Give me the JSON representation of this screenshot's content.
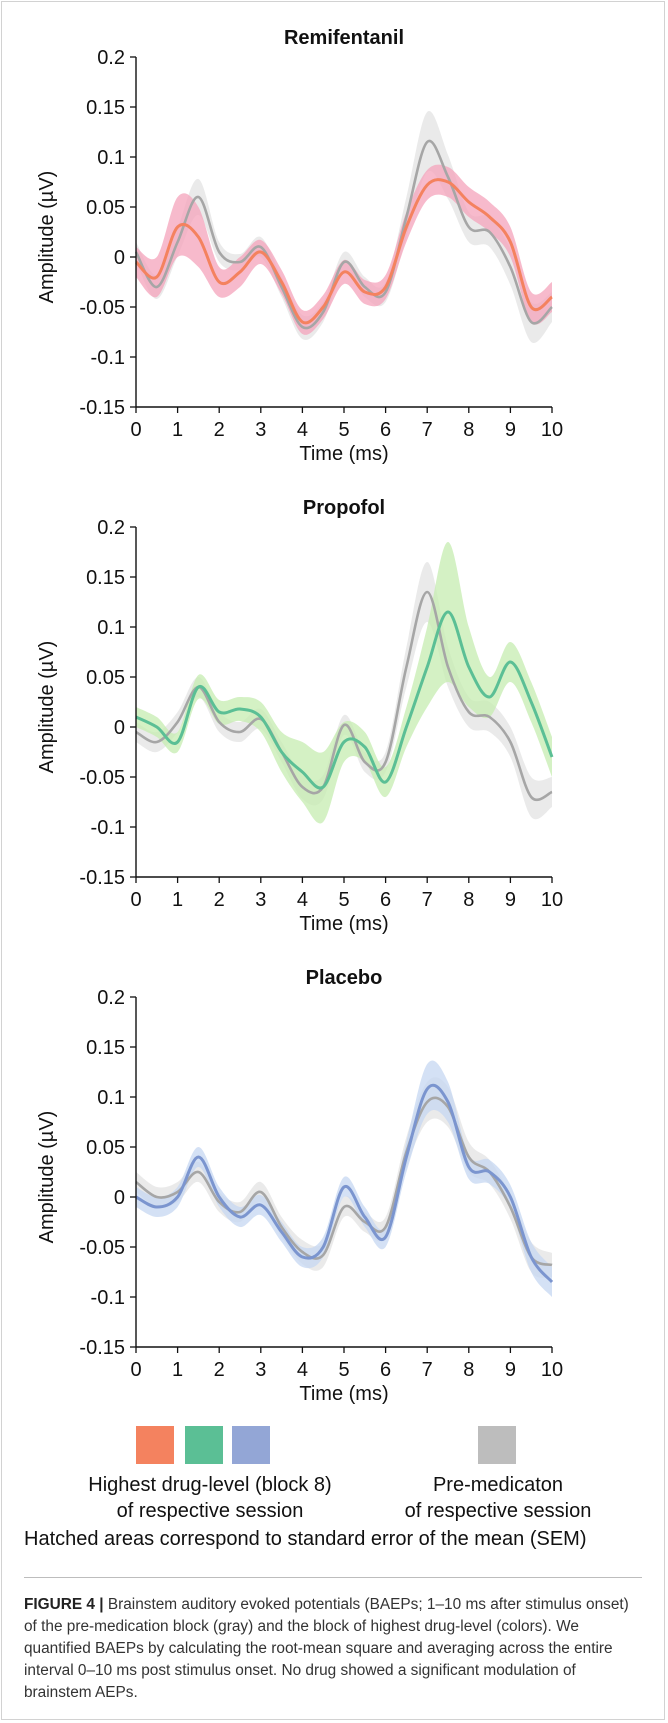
{
  "chart_data": [
    {
      "type": "line",
      "title": "Remifentanil",
      "xlabel": "Time (ms)",
      "ylabel": "Amplitude (µV)",
      "xlim": [
        0,
        10
      ],
      "ylim": [
        -0.15,
        0.2
      ],
      "xticks": [
        "0",
        "1",
        "2",
        "3",
        "4",
        "5",
        "6",
        "7",
        "8",
        "9",
        "10"
      ],
      "yticks": [
        "0.2",
        "0.15",
        "0.1",
        "0.05",
        "0",
        "-0.05",
        "-0.1",
        "-0.15"
      ],
      "drug_color": "#f4825f",
      "drug_band_color": "#f4a3bb",
      "series": [
        {
          "role": "gray",
          "x": [
            0,
            0.5,
            1,
            1.5,
            2,
            2.5,
            3,
            3.5,
            4,
            4.5,
            5,
            5.5,
            6,
            6.5,
            7,
            7.5,
            8,
            8.5,
            9,
            9.5,
            10
          ],
          "y": [
            0.005,
            -0.03,
            0.015,
            0.06,
            0.005,
            -0.005,
            0.01,
            -0.03,
            -0.07,
            -0.055,
            -0.005,
            -0.03,
            -0.035,
            0.04,
            0.115,
            0.08,
            0.03,
            0.025,
            -0.01,
            -0.065,
            -0.05
          ],
          "sem": [
            0.01,
            0.012,
            0.014,
            0.018,
            0.01,
            0.008,
            0.01,
            0.01,
            0.012,
            0.01,
            0.01,
            0.01,
            0.01,
            0.02,
            0.03,
            0.022,
            0.015,
            0.015,
            0.018,
            0.02,
            0.015
          ]
        },
        {
          "role": "drug",
          "x": [
            0,
            0.5,
            1,
            1.5,
            2,
            2.5,
            3,
            3.5,
            4,
            4.5,
            5,
            5.5,
            6,
            6.5,
            7,
            7.5,
            8,
            8.5,
            9,
            9.5,
            10
          ],
          "y": [
            -0.005,
            -0.02,
            0.03,
            0.02,
            -0.025,
            -0.015,
            0.005,
            -0.025,
            -0.065,
            -0.05,
            -0.015,
            -0.035,
            -0.03,
            0.03,
            0.072,
            0.075,
            0.055,
            0.04,
            0.015,
            -0.05,
            -0.04
          ],
          "sem": [
            0.015,
            0.02,
            0.03,
            0.03,
            0.015,
            0.015,
            0.012,
            0.012,
            0.012,
            0.012,
            0.012,
            0.012,
            0.012,
            0.015,
            0.015,
            0.015,
            0.015,
            0.015,
            0.015,
            0.015,
            0.015
          ]
        }
      ]
    },
    {
      "type": "line",
      "title": "Propofol",
      "xlabel": "Time (ms)",
      "ylabel": "Amplitude (µV)",
      "xlim": [
        0,
        10
      ],
      "ylim": [
        -0.15,
        0.2
      ],
      "xticks": [
        "0",
        "1",
        "2",
        "3",
        "4",
        "5",
        "6",
        "7",
        "8",
        "9",
        "10"
      ],
      "yticks": [
        "0.2",
        "0.15",
        "0.1",
        "0.05",
        "0",
        "-0.05",
        "-0.1",
        "-0.15"
      ],
      "drug_color": "#5bbf95",
      "drug_band_color": "#c6ecb0",
      "series": [
        {
          "role": "gray",
          "x": [
            0,
            0.5,
            1,
            1.5,
            2,
            2.5,
            3,
            3.5,
            4,
            4.5,
            5,
            5.5,
            6,
            6.5,
            7,
            7.5,
            8,
            8.5,
            9,
            9.5,
            10
          ],
          "y": [
            -0.005,
            -0.015,
            0.005,
            0.04,
            0.005,
            -0.005,
            0.008,
            -0.025,
            -0.06,
            -0.06,
            0.002,
            -0.035,
            -0.035,
            0.06,
            0.135,
            0.06,
            0.015,
            0.01,
            -0.015,
            -0.07,
            -0.065
          ],
          "sem": [
            0.01,
            0.01,
            0.01,
            0.01,
            0.01,
            0.01,
            0.01,
            0.01,
            0.012,
            0.012,
            0.01,
            0.01,
            0.01,
            0.02,
            0.03,
            0.02,
            0.015,
            0.015,
            0.015,
            0.02,
            0.015
          ]
        },
        {
          "role": "drug",
          "x": [
            0,
            0.5,
            1,
            1.5,
            2,
            2.5,
            3,
            3.5,
            4,
            4.5,
            5,
            5.5,
            6,
            6.5,
            7,
            7.5,
            8,
            8.5,
            9,
            9.5,
            10
          ],
          "y": [
            0.01,
            0.0,
            -0.015,
            0.04,
            0.015,
            0.018,
            0.01,
            -0.025,
            -0.045,
            -0.06,
            -0.015,
            -0.02,
            -0.055,
            0.0,
            0.06,
            0.115,
            0.06,
            0.03,
            0.065,
            0.025,
            -0.03
          ],
          "sem": [
            0.01,
            0.01,
            0.01,
            0.012,
            0.012,
            0.012,
            0.015,
            0.02,
            0.03,
            0.035,
            0.02,
            0.015,
            0.015,
            0.02,
            0.04,
            0.07,
            0.04,
            0.02,
            0.02,
            0.02,
            0.02
          ]
        }
      ]
    },
    {
      "type": "line",
      "title": "Placebo",
      "xlabel": "Time (ms)",
      "ylabel": "Amplitude (µV)",
      "xlim": [
        0,
        10
      ],
      "ylim": [
        -0.15,
        0.2
      ],
      "xticks": [
        "0",
        "1",
        "2",
        "3",
        "4",
        "5",
        "6",
        "7",
        "8",
        "9",
        "10"
      ],
      "yticks": [
        "0.2",
        "0.15",
        "0.1",
        "0.05",
        "0",
        "-0.05",
        "-0.1",
        "-0.15"
      ],
      "drug_color": "#7b95cf",
      "drug_band_color": "#c5d7f2",
      "series": [
        {
          "role": "gray",
          "x": [
            0,
            0.5,
            1,
            1.5,
            2,
            2.5,
            3,
            3.5,
            4,
            4.5,
            5,
            5.5,
            6,
            6.5,
            7,
            7.5,
            8,
            8.5,
            9,
            9.5,
            10
          ],
          "y": [
            0.015,
            0.0,
            0.005,
            0.025,
            -0.005,
            -0.015,
            0.005,
            -0.03,
            -0.055,
            -0.058,
            -0.01,
            -0.025,
            -0.03,
            0.045,
            0.095,
            0.09,
            0.04,
            0.025,
            -0.01,
            -0.06,
            -0.068
          ],
          "sem": [
            0.01,
            0.01,
            0.01,
            0.01,
            0.01,
            0.01,
            0.01,
            0.01,
            0.012,
            0.012,
            0.01,
            0.01,
            0.01,
            0.015,
            0.02,
            0.02,
            0.015,
            0.012,
            0.012,
            0.015,
            0.012
          ]
        },
        {
          "role": "drug",
          "x": [
            0,
            0.5,
            1,
            1.5,
            2,
            2.5,
            3,
            3.5,
            4,
            4.5,
            5,
            5.5,
            6,
            6.5,
            7,
            7.5,
            8,
            8.5,
            9,
            9.5,
            10
          ],
          "y": [
            0.0,
            -0.01,
            0.0,
            0.04,
            0.0,
            -0.02,
            -0.008,
            -0.035,
            -0.06,
            -0.05,
            0.01,
            -0.02,
            -0.04,
            0.04,
            0.108,
            0.095,
            0.03,
            0.025,
            0.0,
            -0.06,
            -0.085
          ],
          "sem": [
            0.01,
            0.01,
            0.01,
            0.01,
            0.01,
            0.01,
            0.01,
            0.01,
            0.01,
            0.01,
            0.01,
            0.01,
            0.01,
            0.015,
            0.025,
            0.02,
            0.012,
            0.012,
            0.012,
            0.015,
            0.015
          ]
        }
      ]
    }
  ],
  "legend": {
    "drug_swatches": [
      "#f4825f",
      "#5bbf95",
      "#93a6d6"
    ],
    "pre_swatch": "#bdbdbd",
    "drug_text_line1": "Highest drug-level (block 8)",
    "drug_text_line2": "of respective session",
    "pre_text_line1": "Pre-medicaton",
    "pre_text_line2": "of respective session",
    "hatch_note": "Hatched areas correspond to standard error of the mean (SEM)"
  },
  "caption": {
    "label": "FIGURE 4 |",
    "text": "Brainstem auditory evoked potentials (BAEPs; 1–10 ms after stimulus onset) of the pre-medication block (gray) and the block of highest drug-level (colors). We quantified BAEPs by calculating the root-mean square and averaging across the entire interval 0–10 ms post stimulus onset. No drug showed a significant modulation of brainstem AEPs."
  }
}
